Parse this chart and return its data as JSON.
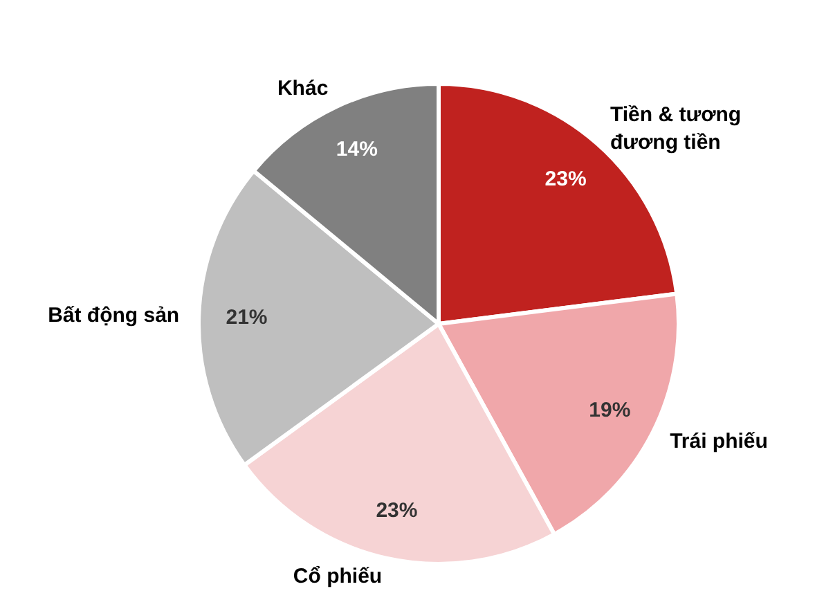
{
  "chart_data": {
    "type": "pie",
    "categories": [
      "Tiền & tương đương tiền",
      "Trái phiếu",
      "Cổ phiếu",
      "Bất động sản",
      "Khác"
    ],
    "values": [
      23,
      19,
      23,
      21,
      14
    ],
    "value_labels": [
      "23%",
      "19%",
      "23%",
      "21%",
      "14%"
    ],
    "colors": [
      "#c0221f",
      "#f0a7aa",
      "#f6d3d4",
      "#bfbfbf",
      "#808080"
    ],
    "legend": false
  }
}
